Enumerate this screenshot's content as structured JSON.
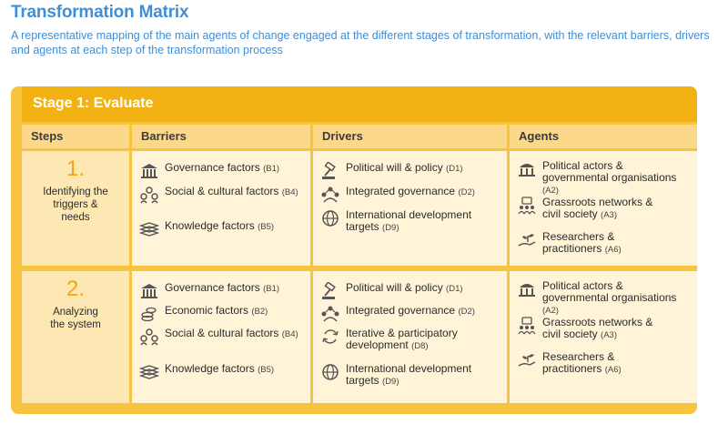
{
  "title": "Transformation Matrix",
  "subtitle": "A representative mapping of the main agents of change engaged at the different stages of transformation, with the relevant barriers, drivers and agents at each step of the transformation process",
  "stage_title": "Stage 1: Evaluate",
  "columns": [
    "Steps",
    "Barriers",
    "Drivers",
    "Agents"
  ],
  "steps": [
    {
      "number": "1.",
      "label": "Identifying the triggers & needs",
      "barriers": [
        {
          "text": "Governance factors",
          "code": "(B1)",
          "icon": "institution-icon"
        },
        {
          "text": "Social & cultural factors",
          "code": "(B4)",
          "icon": "people-group-icon"
        },
        {
          "text": "Knowledge factors",
          "code": "(B5)",
          "icon": "books-icon"
        }
      ],
      "drivers": [
        {
          "text": "Political will & policy",
          "code": "(D1)",
          "icon": "gavel-icon"
        },
        {
          "text": "Integrated governance",
          "code": "(D2)",
          "icon": "network-people-icon"
        },
        {
          "text": "International development targets",
          "code": "(D9)",
          "icon": "globe-icon"
        }
      ],
      "agents": [
        {
          "text": "Political actors & governmental organisations",
          "code": "(A2)",
          "icon": "parliament-icon"
        },
        {
          "text": "Grassroots networks & civil society",
          "code": "(A3)",
          "icon": "community-icon"
        },
        {
          "text": "Researchers & practitioners",
          "code": "(A6)",
          "icon": "hand-plant-icon"
        }
      ]
    },
    {
      "number": "2.",
      "label": "Analyzing the system",
      "barriers": [
        {
          "text": "Governance factors",
          "code": "(B1)",
          "icon": "institution-icon"
        },
        {
          "text": "Economic factors",
          "code": "(B2)",
          "icon": "coins-icon"
        },
        {
          "text": "Social & cultural factors",
          "code": "(B4)",
          "icon": "people-group-icon"
        },
        {
          "text": "Knowledge factors",
          "code": "(B5)",
          "icon": "books-icon"
        }
      ],
      "drivers": [
        {
          "text": "Political will & policy",
          "code": "(D1)",
          "icon": "gavel-icon"
        },
        {
          "text": "Integrated governance",
          "code": "(D2)",
          "icon": "network-people-icon"
        },
        {
          "text": "Iterative & participatory development",
          "code": "(D8)",
          "icon": "cycle-icon"
        },
        {
          "text": "International development targets",
          "code": "(D9)",
          "icon": "globe-icon"
        }
      ],
      "agents": [
        {
          "text": "Political actors & governmental organisations",
          "code": "(A2)",
          "icon": "parliament-icon"
        },
        {
          "text": "Grassroots networks & civil society",
          "code": "(A3)",
          "icon": "community-icon"
        },
        {
          "text": "Researchers & practitioners",
          "code": "(A6)",
          "icon": "hand-plant-icon"
        }
      ]
    }
  ],
  "colors": {
    "title": "#3f8fd6",
    "accent": "#f3b213",
    "frame": "#f8c43f",
    "header": "#fbd88a",
    "cell": "#fff4d8",
    "step_cell": "#fde8b4",
    "step_number": "#f3a614"
  }
}
